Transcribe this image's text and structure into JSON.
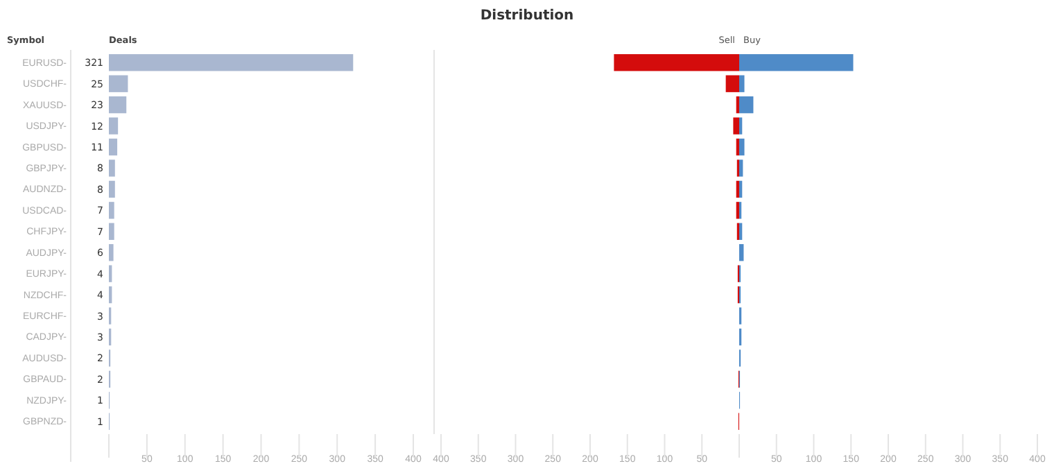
{
  "chart_data": [
    {
      "type": "bar",
      "ylabel": "Symbol",
      "xlabel": "Deals",
      "orientation": "horizontal",
      "data_labels": true,
      "categories": [
        "EURUSD-",
        "USDCHF-",
        "XAUUSD-",
        "USDJPY-",
        "GBPUSD-",
        "GBPJPY-",
        "AUDNZD-",
        "USDCAD-",
        "CHFJPY-",
        "AUDJPY-",
        "EURJPY-",
        "NZDCHF-",
        "EURCHF-",
        "CADJPY-",
        "AUDUSD-",
        "GBPAUD-",
        "NZDJPY-",
        "GBPNZD-"
      ],
      "values": [
        321,
        25,
        23,
        12,
        11,
        8,
        8,
        7,
        7,
        6,
        4,
        4,
        3,
        3,
        2,
        2,
        1,
        1
      ],
      "color": "#a9b7d0",
      "xlim": [
        0,
        400
      ],
      "xticks": [
        {
          "value": 0,
          "label": null
        },
        50,
        100,
        150,
        200,
        250,
        300,
        350,
        400
      ]
    },
    {
      "type": "bar",
      "title": "Distribution",
      "orientation": "horizontal",
      "stacked": true,
      "tick_labels": "x",
      "categories": [
        null,
        null,
        null,
        null,
        null,
        null,
        null,
        null,
        null,
        null,
        null,
        null,
        null,
        null,
        null,
        null,
        null,
        null
      ],
      "series": [
        {
          "name": "Sell",
          "color": "#d40c0c",
          "values": [
            -168,
            -18,
            -4,
            -8,
            -4,
            -3,
            -4,
            -4,
            -3,
            0,
            -2,
            -2,
            0,
            0,
            0,
            -1,
            0,
            -1
          ]
        },
        {
          "name": "Buy",
          "color": "#4f8bc8",
          "values": [
            153,
            7,
            19,
            4,
            7,
            5,
            4,
            3,
            4,
            6,
            2,
            2,
            3,
            3,
            2,
            1,
            1,
            0
          ]
        }
      ],
      "xlim": [
        -400,
        400
      ],
      "xticks": [
        {
          "value": -400,
          "label": "400"
        },
        {
          "value": -350,
          "label": "350"
        },
        {
          "value": -300,
          "label": "300"
        },
        {
          "value": -250,
          "label": "250"
        },
        {
          "value": -200,
          "label": "200"
        },
        {
          "value": -150,
          "label": "150"
        },
        {
          "value": -100,
          "label": "100"
        },
        {
          "value": -50,
          "label": "50"
        },
        {
          "value": 0,
          "label": null
        },
        50,
        100,
        150,
        200,
        250,
        300,
        350,
        400
      ]
    }
  ]
}
